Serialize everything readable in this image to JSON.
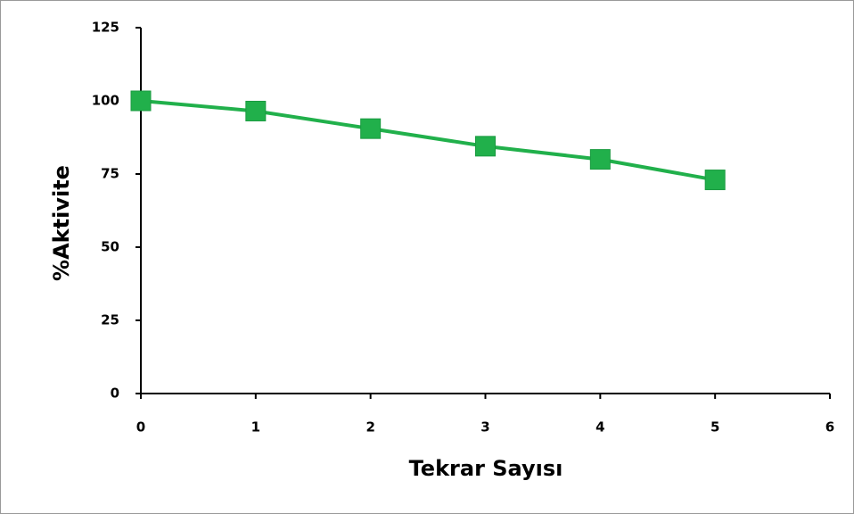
{
  "chart_data": {
    "type": "line",
    "x": [
      0,
      1,
      2,
      3,
      4,
      5
    ],
    "series": [
      {
        "name": "%Aktivite",
        "color": "#21b04b",
        "values": [
          100,
          96.5,
          90.5,
          84.5,
          80,
          73
        ]
      }
    ],
    "xlim": [
      0,
      6
    ],
    "xticks": [
      0,
      1,
      2,
      3,
      4,
      5,
      6
    ],
    "ylim": [
      0,
      125
    ],
    "yticks": [
      0,
      25,
      50,
      75,
      100,
      125
    ],
    "xlabel": "Tekrar Sayısı",
    "ylabel": "%Aktivite"
  }
}
